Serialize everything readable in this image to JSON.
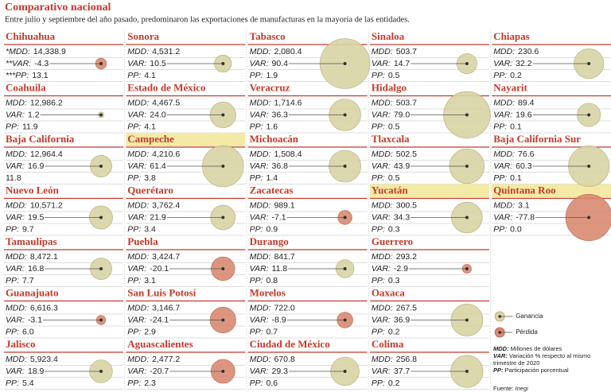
{
  "header": {
    "title": "Comparativo nacional",
    "subtitle": "Entre julio y septiembre del año pasado, predominaron las exportaciones de manufacturas en la mayoría de las entidades."
  },
  "labels": [
    "MDD:",
    "VAR:",
    "PP:"
  ],
  "states": [
    {
      "name": "Chihuahua",
      "labels": [
        "*MDD:",
        "**VAR:",
        "***PP:"
      ],
      "mdd": "14,338.9",
      "var": "-4.3",
      "pp": "13.1"
    },
    {
      "name": "Sonora",
      "mdd": "4,531.2",
      "var": "10.5",
      "pp": "4.1"
    },
    {
      "name": "Tabasco",
      "mdd": "2,080.4",
      "var": "90.4",
      "pp": "1.9"
    },
    {
      "name": "Sinaloa",
      "mdd": "503.7",
      "var": "14.7",
      "pp": "0.5"
    },
    {
      "name": "Chiapas",
      "mdd": "230.6",
      "var": "32.2",
      "pp": "0.2"
    },
    {
      "name": "Coahuila",
      "mdd": "12,986.2",
      "var": "1.2",
      "pp": "11.9"
    },
    {
      "name": "Estado de México",
      "mdd": "4,467.5",
      "var": "24.0",
      "pp": "4.1"
    },
    {
      "name": "Veracruz",
      "mdd": "1,714.6",
      "var": "36.3",
      "pp": "1.6"
    },
    {
      "name": "Hidalgo",
      "mdd": "503.7",
      "var": "79.0",
      "pp": "0.5"
    },
    {
      "name": "Nayarit",
      "mdd": "89.4",
      "var": "19.6",
      "pp": "0.1"
    },
    {
      "name": "Baja California",
      "labels": [
        "MDD:",
        "VAR:"
      ],
      "mdd": "12,964.4",
      "var": "16.9",
      "pp": "11.8"
    },
    {
      "name": "Campeche",
      "highlight": true,
      "mdd": "4,210.6",
      "var": "61.4",
      "pp": "3.8"
    },
    {
      "name": "Michoacán",
      "mdd": "1,508.4",
      "var": "36.8",
      "pp": "1.4"
    },
    {
      "name": "Tlaxcala",
      "mdd": "502.5",
      "var": "43.9",
      "pp": "0.5"
    },
    {
      "name": "Baja California Sur",
      "mdd": "76.6",
      "var": "60.3",
      "pp": "0.1"
    },
    {
      "name": "Nuevo León",
      "mdd": "10,571.2",
      "var": "19.5",
      "pp": "9.7"
    },
    {
      "name": "Querétaro",
      "mdd": "3,762.4",
      "var": "21.9",
      "pp": "3.4"
    },
    {
      "name": "Zacatecas",
      "mdd": "989.1",
      "var": "-7.1",
      "pp": "0.9"
    },
    {
      "name": "Yucatán",
      "highlight": true,
      "mdd": "300.5",
      "var": "34.3",
      "pp": "0.3"
    },
    {
      "name": "Quintana Roo",
      "highlight": true,
      "mdd": "3.1",
      "var": "-77.8",
      "pp": "0.0"
    },
    {
      "name": "Tamaulipas",
      "mdd": "8,472.1",
      "var": "16.8",
      "pp": "7.7"
    },
    {
      "name": "Puebla",
      "mdd": "3,424.7",
      "var": "-20.1",
      "pp": "3.1"
    },
    {
      "name": "Durango",
      "mdd": "841.7",
      "var": "11.8",
      "pp": "0.8"
    },
    {
      "name": "Guerrero",
      "mdd": "293.2",
      "var": "-2.9",
      "pp": "0.3"
    },
    {
      "name": "Guanajuato",
      "mdd": "6,616.3",
      "var": "-3.1",
      "pp": "6.0"
    },
    {
      "name": "San Luis Potosí",
      "mdd": "3,146.7",
      "var": "-24.1",
      "pp": "2.9"
    },
    {
      "name": "Morelos",
      "mdd": "722.0",
      "var": "-8.9",
      "pp": "0.7"
    },
    {
      "name": "Oaxaca",
      "mdd": "267.5",
      "var": "36.9",
      "pp": "0.2"
    },
    {
      "name": "Jalisco",
      "mdd": "5,923.4",
      "var": "18.9",
      "pp": "5.4"
    },
    {
      "name": "Aguascalientes",
      "mdd": "2,477.2",
      "var": "-20.7",
      "pp": "2.3"
    },
    {
      "name": "Ciudad de México",
      "mdd": "670.8",
      "var": "29.3",
      "pp": "0.6"
    },
    {
      "name": "Colima",
      "mdd": "256.8",
      "var": "37.7",
      "pp": "0.2"
    }
  ],
  "legend": {
    "gain": "Ganancia",
    "loss": "Pérdida"
  },
  "notes": [
    {
      "key": "MDD:",
      "text": "Millones de dólares"
    },
    {
      "key": "VAR:",
      "text": "Variación % respecto al mismo trimestre de 2020"
    },
    {
      "key": "PP:",
      "text": "Participación porcentual"
    }
  ],
  "source": {
    "key": "Fuente:",
    "text": "Inegi"
  }
}
